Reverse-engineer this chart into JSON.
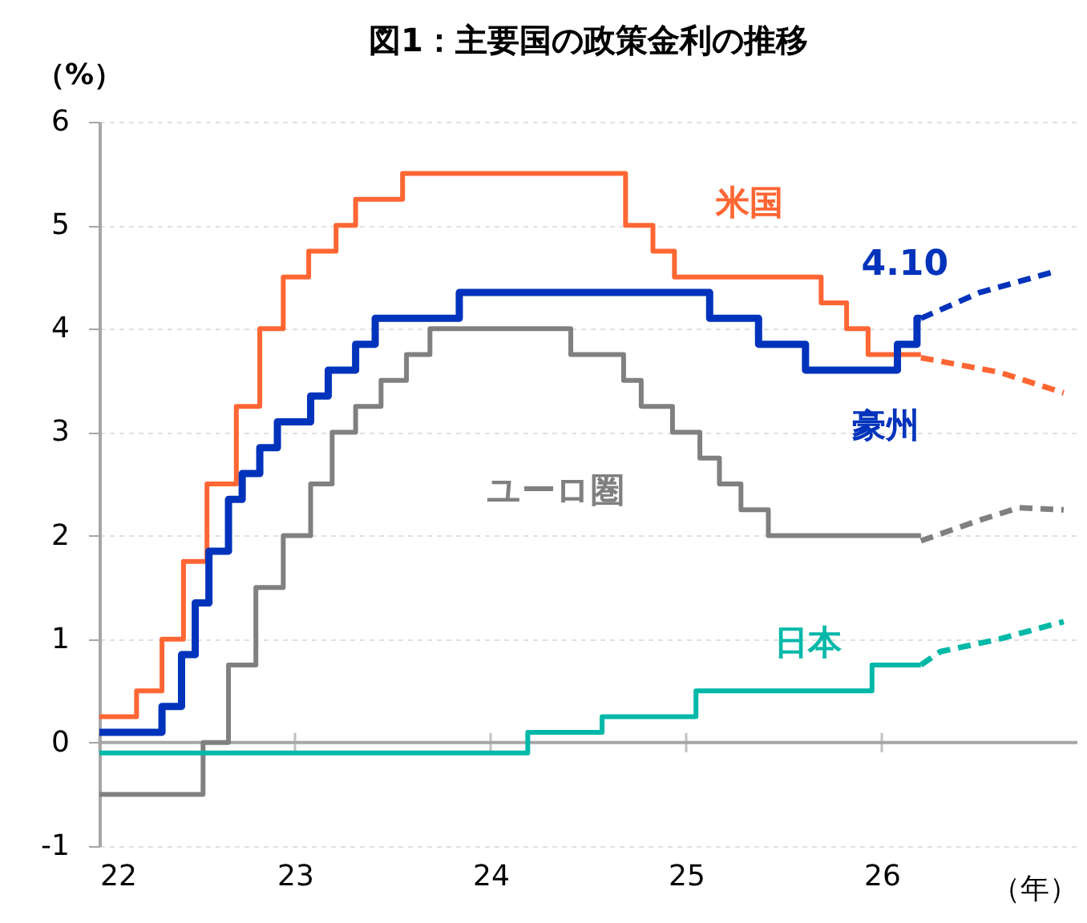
{
  "chart_data": {
    "type": "step",
    "title": "図1：主要国の政策金利の推移",
    "xlabel": "（年）",
    "ylabel": "（%）",
    "xlim": [
      22,
      27
    ],
    "ylim": [
      -1,
      6
    ],
    "xticks": [
      22,
      23,
      24,
      25,
      26
    ],
    "yticks": [
      -1,
      0,
      1,
      2,
      3,
      4,
      5,
      6
    ],
    "grid": "y",
    "marker": "none",
    "ref_lines": [
      {
        "axis": "y",
        "value": 0,
        "color": "#a6a6a6"
      }
    ],
    "annotations": [
      {
        "text": "4.10",
        "x": 26.2,
        "y": 4.1
      }
    ],
    "series": [
      {
        "name": "米国",
        "color": "#ff6633",
        "type": "step",
        "line_style": "solid",
        "x": [
          22,
          22.19,
          22.32,
          22.43,
          22.55,
          22.7,
          22.82,
          22.94,
          23.07,
          23.21,
          23.31,
          23.55,
          24.69,
          24.83,
          24.94,
          25.69,
          25.82,
          25.93,
          26.2
        ],
        "values": [
          0.25,
          0.5,
          1.0,
          1.75,
          2.5,
          3.25,
          4.0,
          4.5,
          4.75,
          5.0,
          5.25,
          5.5,
          5.0,
          4.75,
          4.5,
          4.25,
          4.0,
          3.75,
          3.75
        ]
      },
      {
        "name": "豪州",
        "color": "#0033bb",
        "type": "step",
        "line_style": "solid",
        "x": [
          22,
          22.32,
          22.42,
          22.49,
          22.56,
          22.66,
          22.73,
          22.82,
          22.91,
          23.08,
          23.17,
          23.31,
          23.41,
          23.84,
          25.12,
          25.37,
          25.61,
          26.08,
          26.18,
          26.2
        ],
        "values": [
          0.1,
          0.35,
          0.85,
          1.35,
          1.85,
          2.35,
          2.6,
          2.85,
          3.1,
          3.35,
          3.6,
          3.85,
          4.1,
          4.35,
          4.1,
          3.85,
          3.6,
          3.85,
          4.1,
          4.1
        ]
      },
      {
        "name": "ユーロ圏",
        "color": "#808080",
        "type": "step",
        "line_style": "solid",
        "x": [
          22,
          22.53,
          22.66,
          22.8,
          22.94,
          23.08,
          23.19,
          23.31,
          23.44,
          23.57,
          23.69,
          24.41,
          24.68,
          24.77,
          24.93,
          25.07,
          25.17,
          25.28,
          25.42,
          26.2
        ],
        "values": [
          -0.5,
          0,
          0.75,
          1.5,
          2.0,
          2.5,
          3.0,
          3.25,
          3.5,
          3.75,
          4.0,
          3.75,
          3.5,
          3.25,
          3.0,
          2.75,
          2.5,
          2.25,
          2.0,
          2.0
        ]
      },
      {
        "name": "日本",
        "color": "#00b8a8",
        "type": "step",
        "line_style": "solid",
        "x": [
          22,
          24.19,
          24.57,
          25.05,
          25.95,
          26.2
        ],
        "values": [
          -0.1,
          0.1,
          0.25,
          0.5,
          0.75,
          0.75
        ]
      },
      {
        "color": "#ff6633",
        "type": "line",
        "line_style": "dashed",
        "x": [
          26.2,
          26.6,
          26.93
        ],
        "values": [
          3.72,
          3.58,
          3.38
        ]
      },
      {
        "color": "#0033bb",
        "type": "line",
        "line_style": "dashed",
        "x": [
          26.2,
          26.5,
          26.88
        ],
        "values": [
          4.1,
          4.35,
          4.55
        ]
      },
      {
        "color": "#808080",
        "type": "line",
        "line_style": "dashed",
        "x": [
          26.2,
          26.5,
          26.7,
          26.93
        ],
        "values": [
          1.95,
          2.15,
          2.27,
          2.25
        ]
      },
      {
        "color": "#00b8a8",
        "type": "line",
        "line_style": "dashed",
        "x": [
          26.2,
          26.3,
          26.6,
          26.93
        ],
        "values": [
          0.75,
          0.88,
          1.0,
          1.17
        ]
      }
    ]
  }
}
